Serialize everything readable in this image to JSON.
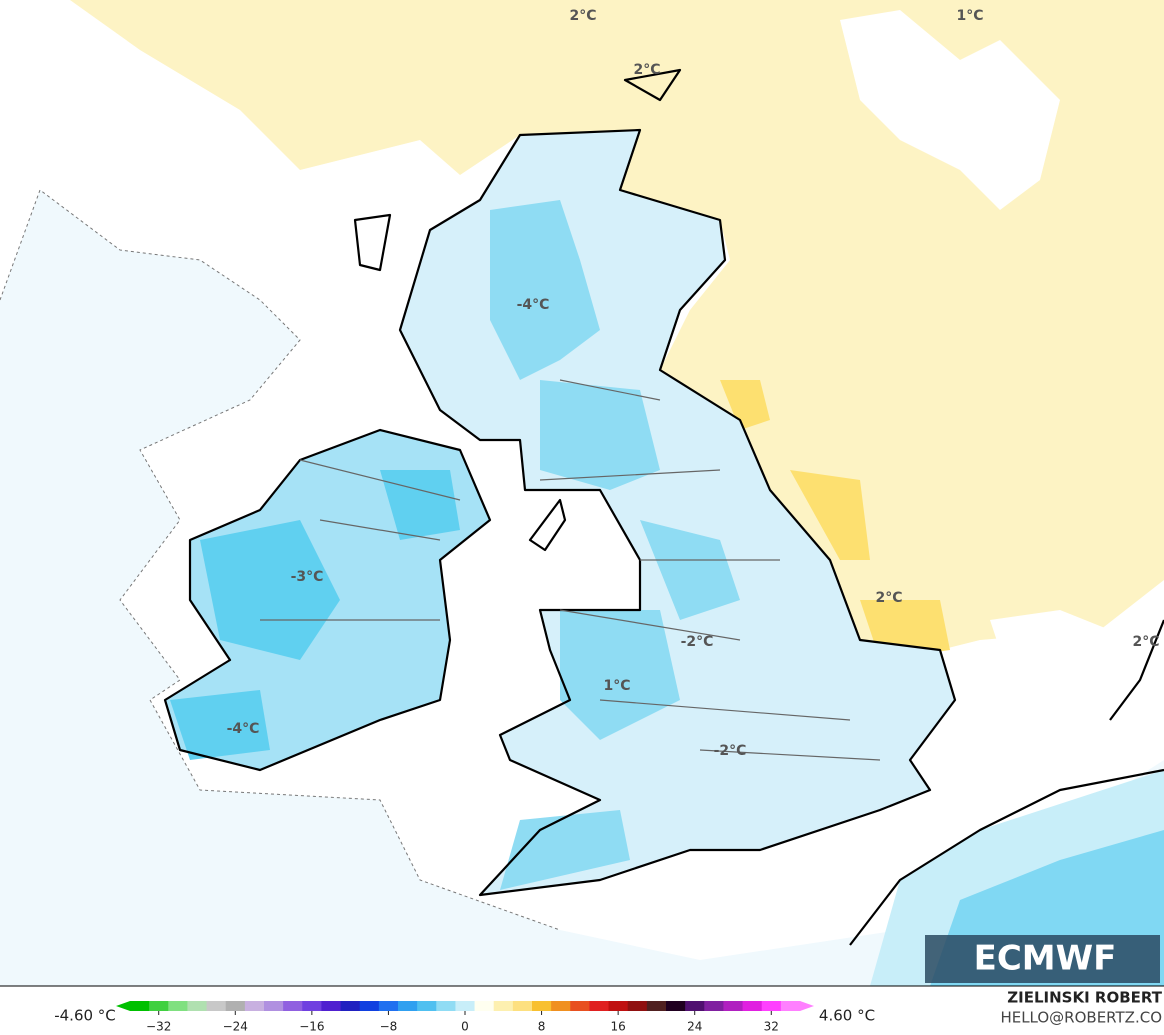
{
  "map_labels": [
    "2°C",
    "1°C",
    "2°C",
    "-4°C",
    "-3°C",
    "2°C",
    "-2°C",
    "2°C",
    "1°C",
    "-2°C",
    "-4°C"
  ],
  "colorbar": {
    "min_label": "-4.60 °C",
    "max_label": "4.60 °C",
    "range": [
      -35,
      35
    ],
    "ticks": [
      {
        "value": -32,
        "label": "−32"
      },
      {
        "value": -24,
        "label": "−24"
      },
      {
        "value": -16,
        "label": "−16"
      },
      {
        "value": -8,
        "label": "−8"
      },
      0,
      8,
      16,
      24,
      32
    ],
    "colors": [
      "#00c000",
      "#40d040",
      "#80e080",
      "#b0e0b0",
      "#c8c8c8",
      "#b0b0b0",
      "#c8b0e0",
      "#b090e0",
      "#9060e0",
      "#7040e0",
      "#5020d0",
      "#2020c0",
      "#1040e0",
      "#2070f0",
      "#30a0f0",
      "#50c0f0",
      "#90dcf4",
      "#c8eef9",
      "#fffff0",
      "#fdf0b0",
      "#fde080",
      "#f8c030",
      "#f09020",
      "#e85020",
      "#e02020",
      "#c01010",
      "#901010",
      "#502020",
      "#200020",
      "#501070",
      "#8020a0",
      "#b020c0",
      "#e020e0",
      "#ff40ff",
      "#ff80ff"
    ]
  },
  "credit": {
    "name": "ZIELINSKI ROBERT",
    "email": "HELLO@ROBERTZ.CO"
  },
  "logo": "ECMWF"
}
